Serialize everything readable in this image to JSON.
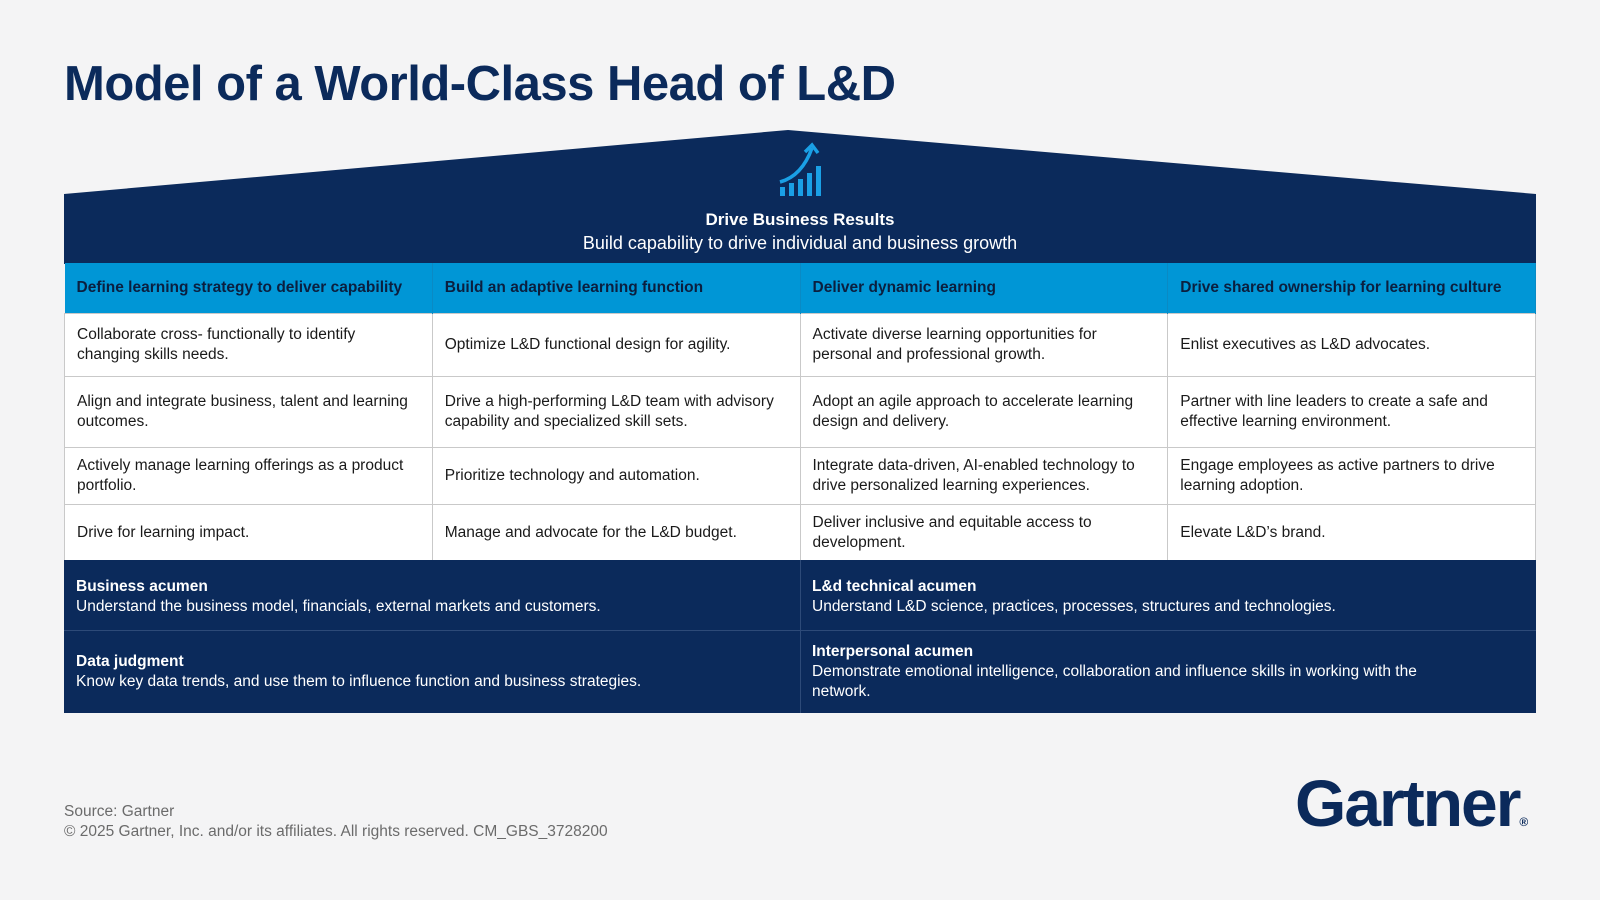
{
  "title": "Model of a World-Class Head of L&D",
  "roof": {
    "icon": "growth-chart-arrow-icon",
    "heading": "Drive Business Results",
    "subheading": "Build capability to drive individual and business growth"
  },
  "columns": [
    "Define learning strategy to deliver capability",
    "Build an adaptive learning function",
    "Deliver dynamic learning",
    "Drive shared ownership for learning culture"
  ],
  "rows": [
    [
      "Collaborate cross- functionally to identify changing skills needs.",
      "Optimize L&D functional design for agility.",
      "Activate diverse learning opportunities for personal and professional growth.",
      "Enlist executives as L&D advocates."
    ],
    [
      "Align and integrate business, talent and learning outcomes.",
      "Drive a high-performing L&D team with advisory capability and specialized skill sets.",
      "Adopt an agile approach to accelerate learning design and delivery.",
      "Partner with line leaders to create a safe and effective learning environment."
    ],
    [
      "Actively manage learning offerings as a product portfolio.",
      "Prioritize technology and automation.",
      "Integrate data-driven, AI-enabled technology to drive personalized learning experiences.",
      "Engage employees as active partners to drive learning adoption."
    ],
    [
      "Drive for learning impact.",
      "Manage and advocate for the L&D budget.",
      "Deliver inclusive and equitable access to development.",
      "Elevate L&D’s brand."
    ]
  ],
  "foundation": [
    {
      "title": "Business acumen",
      "text": "Understand the business model, financials, external markets and customers."
    },
    {
      "title": "L&d technical acumen",
      "text": "Understand L&D science, practices, processes, structures and technologies."
    },
    {
      "title": "Data judgment",
      "text": "Know key data trends, and use them to influence function and business strategies."
    },
    {
      "title": "Interpersonal acumen",
      "text": "Demonstrate emotional intelligence, collaboration and influence skills in working with the network."
    }
  ],
  "footer": {
    "source": "Source: Gartner",
    "copyright": "© 2025 Gartner, Inc. and/or its affiliates. All rights reserved. CM_GBS_3728200"
  },
  "logo": {
    "text": "Gartner",
    "mark": "®"
  },
  "colors": {
    "navy": "#0b2a5b",
    "accent_blue": "#0096d6",
    "icon_blue": "#1aa0e6"
  }
}
